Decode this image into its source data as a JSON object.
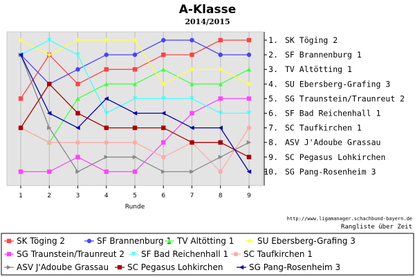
{
  "chart_data": {
    "type": "line",
    "title": "A-Klasse",
    "subtitle": "2014/2015",
    "xlabel": "Runde",
    "x": [
      1,
      2,
      3,
      4,
      5,
      6,
      7,
      8,
      9
    ],
    "ylim": [
      1,
      10
    ],
    "y_inverted": true,
    "grid": true,
    "legend_placement": "bottom",
    "rank_labels": [
      "1. SK Töging 2",
      "2. SF Brannenburg 1",
      "3. TV Altötting 1",
      "4. SU Ebersberg-Grafing 3",
      "5. SG Traunstein/Traunreut 2",
      "6. SF Bad Reichenhall 1",
      "7. SC Taufkirchen 1",
      "8. ASV J'Adoube Grassau",
      "9. SC Pegasus Lohkirchen",
      "10. SG Pang-Rosenheim 3"
    ],
    "series": [
      {
        "name": "SK Töging 2",
        "color": "#ff4444",
        "marker": "square",
        "values": [
          5,
          2,
          4,
          3,
          3,
          2,
          2,
          1,
          1
        ]
      },
      {
        "name": "SF Brannenburg 1",
        "color": "#4444ff",
        "marker": "circle",
        "values": [
          2,
          4,
          3,
          2,
          2,
          1,
          1,
          2,
          2
        ]
      },
      {
        "name": "TV Altötting 1",
        "color": "#44ff44",
        "marker": "triangle-up",
        "values": [
          7,
          8,
          5,
          4,
          4,
          3,
          4,
          4,
          3
        ]
      },
      {
        "name": "SU Ebersberg-Grafing 3",
        "color": "#ffff44",
        "marker": "diamond",
        "values": [
          1,
          2,
          1,
          1,
          1,
          4,
          3,
          3,
          4
        ]
      },
      {
        "name": "SG Traunstein/Traunreut 2",
        "color": "#ff44ff",
        "marker": "square",
        "values": [
          10,
          10,
          9,
          10,
          10,
          8,
          6,
          5,
          5
        ]
      },
      {
        "name": "SF Bad Reichenhall 1",
        "color": "#44ffff",
        "marker": "triangle-down",
        "values": [
          2,
          1,
          2,
          6,
          5,
          5,
          5,
          6,
          6
        ]
      },
      {
        "name": "SC Taufkirchen 1",
        "color": "#ffaaaa",
        "marker": "circle",
        "values": [
          7,
          8,
          8,
          8,
          8,
          9,
          8,
          10,
          7
        ]
      },
      {
        "name": "ASV J'Adoube Grassau",
        "color": "#888888",
        "marker": "triangle-right",
        "values": [
          2,
          7,
          10,
          9,
          9,
          10,
          10,
          9,
          8
        ]
      },
      {
        "name": "SC Pegasus Lohkirchen",
        "color": "#aa0000",
        "marker": "square",
        "values": [
          7,
          4,
          6,
          7,
          7,
          7,
          8,
          8,
          9
        ]
      },
      {
        "name": "SG Pang-Rosenheim 3",
        "color": "#0000aa",
        "marker": "triangle-left",
        "values": [
          2,
          6,
          7,
          5,
          6,
          6,
          7,
          7,
          10
        ]
      }
    ]
  },
  "footer": {
    "url": "http://www.ligamanager.schachbund-bayern.de",
    "caption": "Rangliste über Zeit"
  }
}
